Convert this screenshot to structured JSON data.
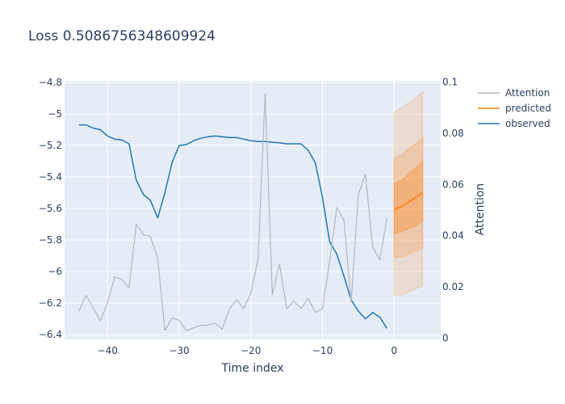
{
  "chart_data": {
    "type": "line",
    "title": "Loss 0.5086756348609924",
    "xlabel": "Time index",
    "ylabel": "",
    "y2label": "Attention",
    "xlim": [
      -46,
      6.5
    ],
    "ylim": [
      -6.43,
      -4.79
    ],
    "y2lim": [
      -0.0005,
      0.1005
    ],
    "x_ticks": [
      -40,
      -30,
      -20,
      -10,
      0
    ],
    "y_ticks": [
      -4.8,
      -5,
      -5.2,
      -5.4,
      -5.6,
      -5.8,
      -6,
      -6.2,
      -6.4
    ],
    "y2_ticks": [
      0,
      0.02,
      0.04,
      0.06,
      0.08,
      0.1
    ],
    "x_tick_labels": [
      "−40",
      "−30",
      "−20",
      "−10",
      "0"
    ],
    "y_tick_labels": [
      "−4.8",
      "−5",
      "−5.2",
      "−5.4",
      "−5.6",
      "−5.8",
      "−6",
      "−6.2",
      "−6.4"
    ],
    "y2_tick_labels": [
      "0",
      "0.02",
      "0.04",
      "0.06",
      "0.08",
      "0.1"
    ],
    "legend": [
      "Attention",
      "predicted",
      "observed"
    ],
    "legend_position": "top-right",
    "grid": true,
    "colors": {
      "plot_bg": "#e5ecf6",
      "grid": "#ffffff",
      "attention": "#b4b8bd",
      "predicted": "#ff7f0e",
      "observed": "#1f77b4",
      "band": "#ff7f0e",
      "text": "#2a3f5f"
    },
    "series": [
      {
        "name": "observed",
        "x": [
          -44,
          -43,
          -42,
          -41,
          -40,
          -39,
          -38,
          -37,
          -36,
          -35,
          -34,
          -33,
          -32,
          -31,
          -30,
          -29,
          -28,
          -27,
          -26,
          -25,
          -24,
          -23,
          -22,
          -21,
          -20,
          -19,
          -18,
          -17,
          -16,
          -15,
          -14,
          -13,
          -12,
          -11,
          -10,
          -9,
          -8,
          -7,
          -6,
          -5,
          -4,
          -3,
          -2,
          -1
        ],
        "y": [
          -5.07,
          -5.07,
          -5.09,
          -5.1,
          -5.14,
          -5.16,
          -5.165,
          -5.19,
          -5.42,
          -5.51,
          -5.55,
          -5.66,
          -5.5,
          -5.31,
          -5.2,
          -5.195,
          -5.17,
          -5.155,
          -5.145,
          -5.14,
          -5.145,
          -5.15,
          -5.15,
          -5.16,
          -5.17,
          -5.175,
          -5.175,
          -5.18,
          -5.183,
          -5.19,
          -5.19,
          -5.19,
          -5.23,
          -5.31,
          -5.53,
          -5.81,
          -5.89,
          -6.03,
          -6.18,
          -6.25,
          -6.3,
          -6.26,
          -6.29,
          -6.36
        ]
      },
      {
        "name": "Attention",
        "axis": "y2",
        "x": [
          -44,
          -43,
          -42,
          -41,
          -40,
          -39,
          -38,
          -37,
          -36,
          -35,
          -34,
          -33,
          -32,
          -31,
          -30,
          -29,
          -28,
          -27,
          -26,
          -25,
          -24,
          -23,
          -22,
          -21,
          -20,
          -19,
          -18,
          -17,
          -16,
          -15,
          -14,
          -13,
          -12,
          -11,
          -10,
          -9,
          -8,
          -7,
          -6,
          -5,
          -4,
          -3,
          -2,
          -1
        ],
        "y": [
          0.0105,
          0.0167,
          0.0118,
          0.0067,
          0.0139,
          0.0239,
          0.0228,
          0.0196,
          0.0445,
          0.0403,
          0.0397,
          0.0311,
          0.0029,
          0.0079,
          0.0069,
          0.0029,
          0.004,
          0.005,
          0.005,
          0.0059,
          0.0035,
          0.0114,
          0.015,
          0.0115,
          0.0174,
          0.0308,
          0.0955,
          0.017,
          0.029,
          0.0115,
          0.0145,
          0.0115,
          0.0155,
          0.01,
          0.0115,
          0.03,
          0.051,
          0.046,
          0.014,
          0.056,
          0.064,
          0.0355,
          0.0305,
          0.047
        ]
      },
      {
        "name": "predicted",
        "x": [
          0,
          1,
          2,
          3,
          4
        ],
        "y": [
          -5.605,
          -5.59,
          -5.56,
          -5.53,
          -5.5
        ]
      }
    ],
    "bands": [
      {
        "x": [
          0,
          1,
          2,
          3,
          4
        ],
        "upper": [
          -4.99,
          -4.96,
          -4.93,
          -4.9,
          -4.86
        ],
        "lower": [
          -6.15,
          -6.15,
          -6.13,
          -6.11,
          -6.09
        ]
      },
      {
        "x": [
          0,
          1,
          2,
          3,
          4
        ],
        "upper": [
          -5.28,
          -5.26,
          -5.22,
          -5.19,
          -5.15
        ],
        "lower": [
          -5.91,
          -5.91,
          -5.89,
          -5.87,
          -5.85
        ]
      },
      {
        "x": [
          0,
          1,
          2,
          3,
          4
        ],
        "upper": [
          -5.44,
          -5.42,
          -5.38,
          -5.34,
          -5.3
        ],
        "lower": [
          -5.76,
          -5.75,
          -5.73,
          -5.71,
          -5.68
        ]
      }
    ]
  }
}
